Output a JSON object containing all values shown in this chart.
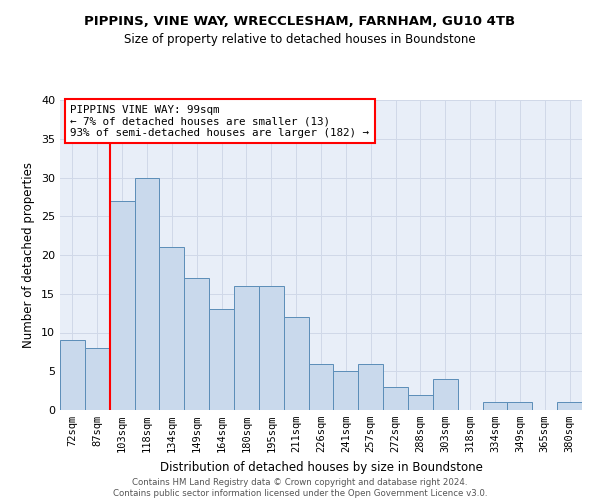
{
  "title_line1": "PIPPINS, VINE WAY, WRECCLESHAM, FARNHAM, GU10 4TB",
  "title_line2": "Size of property relative to detached houses in Boundstone",
  "xlabel": "Distribution of detached houses by size in Boundstone",
  "ylabel": "Number of detached properties",
  "categories": [
    "72sqm",
    "87sqm",
    "103sqm",
    "118sqm",
    "134sqm",
    "149sqm",
    "164sqm",
    "180sqm",
    "195sqm",
    "211sqm",
    "226sqm",
    "241sqm",
    "257sqm",
    "272sqm",
    "288sqm",
    "303sqm",
    "318sqm",
    "334sqm",
    "349sqm",
    "365sqm",
    "380sqm"
  ],
  "values": [
    9,
    8,
    27,
    30,
    21,
    17,
    13,
    16,
    16,
    12,
    6,
    5,
    6,
    3,
    2,
    4,
    0,
    1,
    1,
    0,
    1
  ],
  "bar_color": "#c9d9ec",
  "bar_edge_color": "#5b8db8",
  "grid_color": "#d0d8e8",
  "background_color": "#e8eef8",
  "redline_x": 1.5,
  "annotation_title": "PIPPINS VINE WAY: 99sqm",
  "annotation_line1": "← 7% of detached houses are smaller (13)",
  "annotation_line2": "93% of semi-detached houses are larger (182) →",
  "footer_line1": "Contains HM Land Registry data © Crown copyright and database right 2024.",
  "footer_line2": "Contains public sector information licensed under the Open Government Licence v3.0.",
  "ylim": [
    0,
    40
  ],
  "yticks": [
    0,
    5,
    10,
    15,
    20,
    25,
    30,
    35,
    40
  ]
}
